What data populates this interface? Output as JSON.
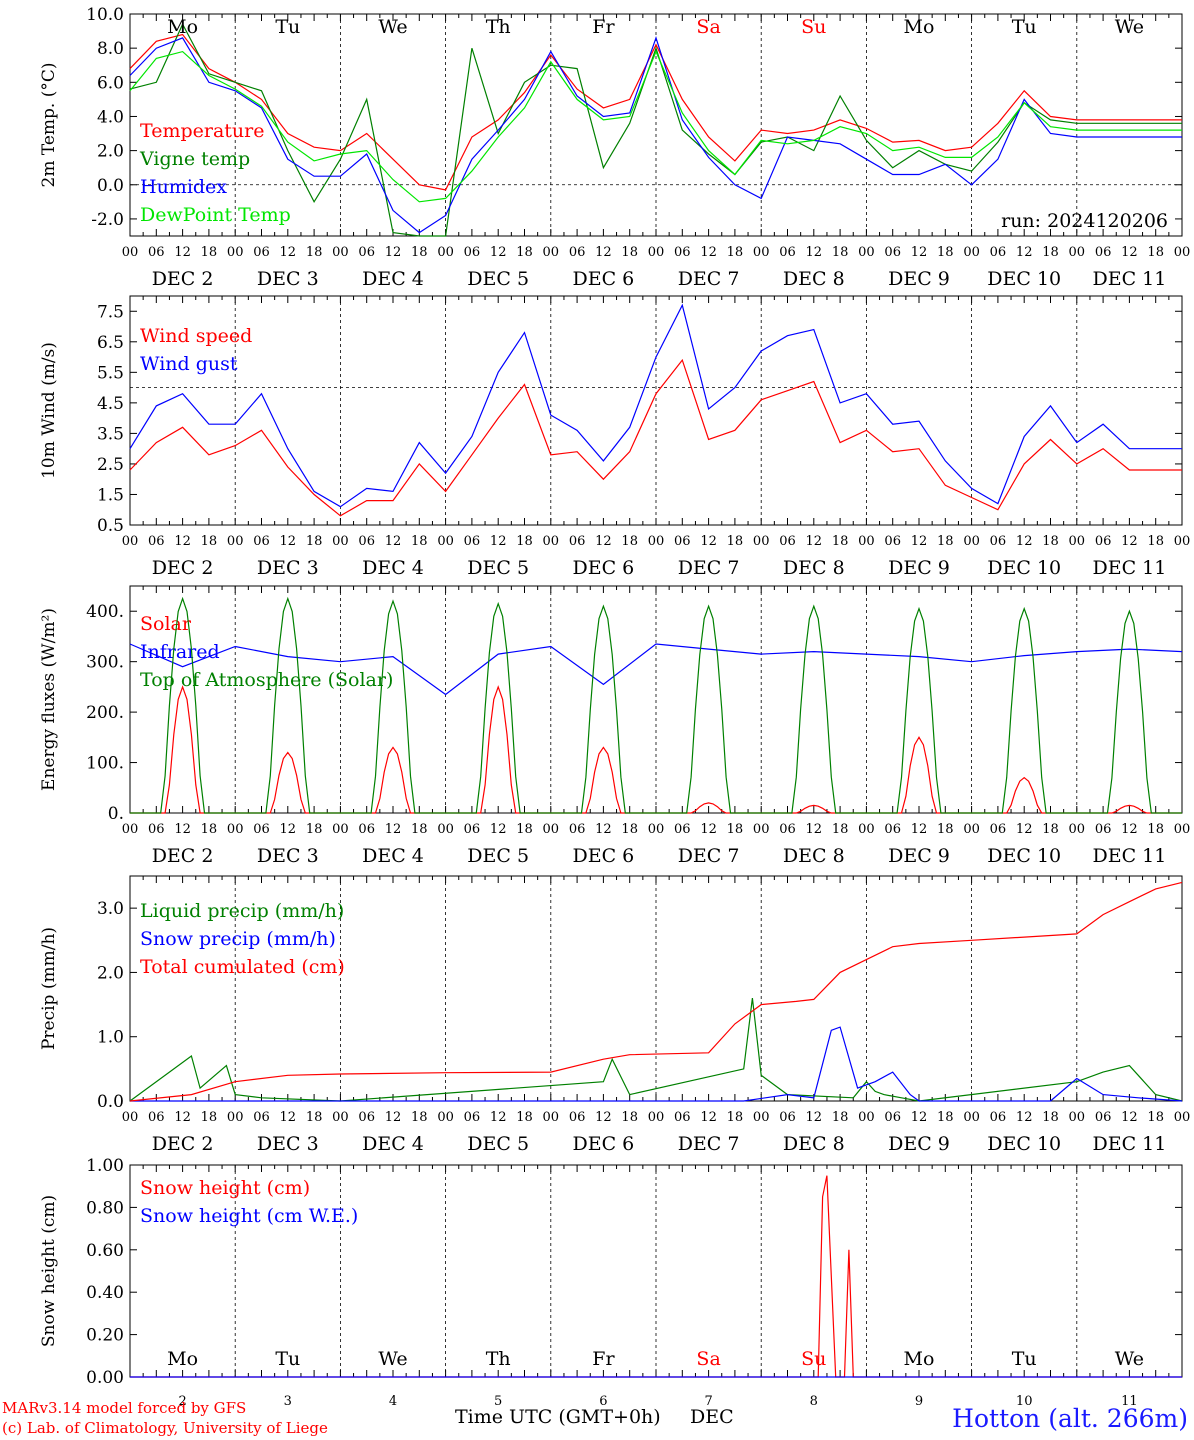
{
  "footer": {
    "model_line": "MARv3.14 model forced by GFS",
    "credit_line": "(c) Lab. of Climatology, University of Liege",
    "xaxis_title": "Time UTC (GMT+0h)",
    "month": "DEC",
    "station": "Hotton (alt. 266m)"
  },
  "hour_ticks": [
    "00",
    "06",
    "12",
    "18"
  ],
  "end_hour_tick": "00",
  "date_labels": [
    "DEC  2",
    "DEC  3",
    "DEC  4",
    "DEC  5",
    "DEC  6",
    "DEC  7",
    "DEC  8",
    "DEC  9",
    "DEC 10",
    "DEC 11"
  ],
  "day_numbers": [
    "2",
    "3",
    "4",
    "5",
    "6",
    "7",
    "8",
    "9",
    "10",
    "11"
  ],
  "weekdays": [
    "Mo",
    "Tu",
    "We",
    "Th",
    "Fr",
    "Sa",
    "Su",
    "Mo",
    "Tu",
    "We"
  ],
  "weekend_color": "#ff0000",
  "chart_data": [
    {
      "type": "line",
      "ylabel": "2m Temp. (°C)",
      "ylim": [
        -3,
        10
      ],
      "yticks": [
        "-2.0",
        "0.0",
        "2.0",
        "4.0",
        "6.0",
        "8.0",
        "10.0"
      ],
      "ref_line": 0,
      "annotation": "run: 2024120206",
      "x_unit": "hours since DEC 2 00 UTC",
      "series": [
        {
          "name": "Temperature",
          "color": "#ff0000",
          "x": [
            0,
            6,
            12,
            18,
            24,
            30,
            36,
            42,
            48,
            54,
            60,
            66,
            72,
            78,
            84,
            90,
            96,
            102,
            108,
            114,
            120,
            126,
            132,
            138,
            144,
            150,
            156,
            162,
            168,
            174,
            180,
            186,
            192,
            198,
            204,
            210,
            216,
            222,
            228,
            234,
            240
          ],
          "values": [
            6.8,
            8.4,
            8.8,
            6.8,
            6.0,
            5.0,
            3.0,
            2.2,
            2.0,
            3.0,
            1.5,
            0.0,
            -0.3,
            2.8,
            3.8,
            5.4,
            7.6,
            5.6,
            4.5,
            5.0,
            8.2,
            5.0,
            2.8,
            1.4,
            3.2,
            3.0,
            3.2,
            3.8,
            3.3,
            2.5,
            2.6,
            2.0,
            2.2,
            3.6,
            5.5,
            4.0,
            3.8,
            3.8,
            3.8,
            3.8,
            3.8
          ]
        },
        {
          "name": "Vigne temp",
          "color": "#008000",
          "x": [
            0,
            6,
            12,
            18,
            24,
            30,
            36,
            42,
            48,
            54,
            60,
            66,
            72,
            78,
            84,
            90,
            96,
            102,
            108,
            114,
            120,
            126,
            132,
            138,
            144,
            150,
            156,
            162,
            168,
            174,
            180,
            186,
            192,
            198,
            204,
            210,
            216,
            222,
            228,
            234,
            240
          ],
          "values": [
            5.6,
            6.0,
            9.4,
            6.5,
            6.0,
            5.5,
            2.0,
            -1.0,
            1.5,
            5.0,
            -2.8,
            -3.0,
            -3.0,
            8.0,
            3.0,
            6.0,
            7.0,
            6.8,
            1.0,
            3.6,
            8.0,
            3.2,
            1.8,
            0.6,
            2.5,
            2.8,
            2.0,
            5.2,
            2.6,
            1.0,
            2.0,
            1.2,
            0.8,
            2.5,
            4.8,
            3.8,
            3.6,
            3.6,
            3.6,
            3.6,
            3.6
          ]
        },
        {
          "name": "Humidex",
          "color": "#0000ff",
          "x": [
            0,
            6,
            12,
            18,
            24,
            30,
            36,
            42,
            48,
            54,
            60,
            66,
            72,
            78,
            84,
            90,
            96,
            102,
            108,
            114,
            120,
            126,
            132,
            138,
            144,
            150,
            156,
            162,
            168,
            174,
            180,
            186,
            192,
            198,
            204,
            210,
            216,
            222,
            228,
            234,
            240
          ],
          "values": [
            6.4,
            8.0,
            8.6,
            6.0,
            5.5,
            4.5,
            1.5,
            0.5,
            0.5,
            1.8,
            -1.5,
            -2.8,
            -1.8,
            1.5,
            3.2,
            5.0,
            7.8,
            5.2,
            4.0,
            4.2,
            8.6,
            3.8,
            1.6,
            0.0,
            -0.8,
            2.8,
            2.6,
            2.4,
            1.5,
            0.6,
            0.6,
            1.2,
            0.0,
            1.5,
            5.0,
            3.0,
            2.8,
            2.8,
            2.8,
            2.8,
            2.8
          ]
        },
        {
          "name": "DewPoint Temp",
          "color": "#00e600",
          "x": [
            0,
            6,
            12,
            18,
            24,
            30,
            36,
            42,
            48,
            54,
            60,
            66,
            72,
            78,
            84,
            90,
            96,
            102,
            108,
            114,
            120,
            126,
            132,
            138,
            144,
            150,
            156,
            162,
            168,
            174,
            180,
            186,
            192,
            198,
            204,
            210,
            216,
            222,
            228,
            234,
            240
          ],
          "values": [
            5.5,
            7.4,
            7.8,
            6.4,
            5.6,
            4.6,
            2.5,
            1.4,
            1.8,
            2.0,
            0.3,
            -1.0,
            -0.8,
            0.8,
            2.8,
            4.5,
            7.2,
            5.0,
            3.8,
            4.0,
            7.8,
            4.2,
            2.0,
            0.6,
            2.6,
            2.4,
            2.6,
            3.4,
            3.0,
            2.0,
            2.2,
            1.6,
            1.6,
            2.8,
            4.8,
            3.4,
            3.2,
            3.2,
            3.2,
            3.2,
            3.2
          ]
        }
      ]
    },
    {
      "type": "line",
      "ylabel": "10m Wind (m/s)",
      "ylim": [
        0.5,
        8.0
      ],
      "yticks": [
        "0.5",
        "1.5",
        "2.5",
        "3.5",
        "4.5",
        "5.5",
        "6.5",
        "7.5"
      ],
      "ref_line": 5.0,
      "x_unit": "hours since DEC 2 00 UTC",
      "series": [
        {
          "name": "Wind speed",
          "color": "#ff0000",
          "x": [
            0,
            6,
            12,
            18,
            24,
            30,
            36,
            42,
            48,
            54,
            60,
            66,
            72,
            78,
            84,
            90,
            96,
            102,
            108,
            114,
            120,
            126,
            132,
            138,
            144,
            150,
            156,
            162,
            168,
            174,
            180,
            186,
            192,
            198,
            204,
            210,
            216,
            222,
            228,
            234,
            240
          ],
          "values": [
            2.3,
            3.2,
            3.7,
            2.8,
            3.1,
            3.6,
            2.4,
            1.5,
            0.8,
            1.3,
            1.3,
            2.5,
            1.6,
            2.8,
            4.0,
            5.1,
            2.8,
            2.9,
            2.0,
            2.9,
            4.8,
            5.9,
            3.3,
            3.6,
            4.6,
            4.9,
            5.2,
            3.2,
            3.6,
            2.9,
            3.0,
            1.8,
            1.4,
            1.0,
            2.5,
            3.3,
            2.5,
            3.0,
            2.3,
            2.3,
            2.3
          ]
        },
        {
          "name": "Wind gust",
          "color": "#0000ff",
          "x": [
            0,
            6,
            12,
            18,
            24,
            30,
            36,
            42,
            48,
            54,
            60,
            66,
            72,
            78,
            84,
            90,
            96,
            102,
            108,
            114,
            120,
            126,
            132,
            138,
            144,
            150,
            156,
            162,
            168,
            174,
            180,
            186,
            192,
            198,
            204,
            210,
            216,
            222,
            228,
            234,
            240
          ],
          "values": [
            3.0,
            4.4,
            4.8,
            3.8,
            3.8,
            4.8,
            3.0,
            1.6,
            1.1,
            1.7,
            1.6,
            3.2,
            2.2,
            3.4,
            5.5,
            6.8,
            4.1,
            3.6,
            2.6,
            3.7,
            6.0,
            7.7,
            4.3,
            5.0,
            6.2,
            6.7,
            6.9,
            4.5,
            4.8,
            3.8,
            3.9,
            2.6,
            1.7,
            1.2,
            3.4,
            4.4,
            3.2,
            3.8,
            3.0,
            3.0,
            3.0
          ]
        }
      ]
    },
    {
      "type": "line",
      "ylabel": "Energy fluxes (W/m²)",
      "ylim": [
        0,
        450
      ],
      "yticks": [
        "0.",
        "100.",
        "200.",
        "300.",
        "400."
      ],
      "x_unit": "hours since DEC 2 00 UTC",
      "series": [
        {
          "name": "Solar",
          "color": "#ff0000",
          "peaks": [
            250,
            120,
            130,
            250,
            130,
            20,
            15,
            150,
            70,
            15
          ]
        },
        {
          "name": "Infrared",
          "color": "#0000ff",
          "x": [
            0,
            12,
            24,
            36,
            48,
            60,
            72,
            84,
            96,
            108,
            120,
            132,
            144,
            156,
            168,
            180,
            192,
            204,
            216,
            228,
            240
          ],
          "values": [
            335,
            290,
            330,
            310,
            300,
            310,
            235,
            315,
            330,
            255,
            335,
            325,
            315,
            320,
            315,
            310,
            300,
            312,
            320,
            325,
            320
          ]
        },
        {
          "name": "Top of Atmosphere (Solar)",
          "color": "#008000",
          "peaks": [
            425,
            425,
            420,
            415,
            410,
            410,
            410,
            405,
            405,
            400
          ]
        }
      ]
    },
    {
      "type": "line",
      "ylabel": "Precip (mm/h)",
      "ylim": [
        0,
        3.5
      ],
      "yticks": [
        "0.0",
        "1.0",
        "2.0",
        "3.0"
      ],
      "x_unit": "hours since DEC 2 00 UTC",
      "series": [
        {
          "name": "Liquid precip (mm/h)",
          "color": "#008000",
          "x": [
            0,
            14,
            16,
            22,
            24,
            30,
            48,
            108,
            110,
            114,
            140,
            142,
            144,
            150,
            165,
            168,
            170,
            172,
            176,
            180,
            216,
            222,
            228,
            234,
            240
          ],
          "values": [
            0,
            0.7,
            0.2,
            0.55,
            0.1,
            0.05,
            0.0,
            0.3,
            0.65,
            0.1,
            0.5,
            1.6,
            0.4,
            0.1,
            0.05,
            0.3,
            0.15,
            0.1,
            0.05,
            0.0,
            0.3,
            0.45,
            0.55,
            0.1,
            0.0
          ]
        },
        {
          "name": "Snow precip (mm/h)",
          "color": "#0000ff",
          "x": [
            0,
            140,
            150,
            156,
            160,
            162,
            166,
            170,
            174,
            178,
            180,
            210,
            216,
            222,
            230,
            240
          ],
          "values": [
            0,
            0,
            0.1,
            0.05,
            1.1,
            1.15,
            0.2,
            0.3,
            0.45,
            0.1,
            0.0,
            0.0,
            0.35,
            0.1,
            0.05,
            0.0
          ]
        },
        {
          "name": "Total cumulated (cm)",
          "color": "#ff0000",
          "x": [
            0,
            14,
            24,
            36,
            48,
            72,
            96,
            108,
            114,
            132,
            138,
            144,
            152,
            156,
            162,
            168,
            174,
            180,
            192,
            204,
            216,
            222,
            228,
            234,
            240
          ],
          "values": [
            0,
            0.1,
            0.3,
            0.4,
            0.42,
            0.44,
            0.45,
            0.65,
            0.72,
            0.75,
            1.2,
            1.5,
            1.55,
            1.58,
            2.0,
            2.2,
            2.4,
            2.45,
            2.5,
            2.55,
            2.6,
            2.9,
            3.1,
            3.3,
            3.4
          ]
        }
      ]
    },
    {
      "type": "line",
      "ylabel": "Snow height (cm)",
      "ylim": [
        0,
        1.0
      ],
      "yticks": [
        "0.00",
        "0.20",
        "0.40",
        "0.60",
        "0.80",
        "1.00"
      ],
      "x_unit": "hours since DEC 2 00 UTC",
      "series": [
        {
          "name": "Snow height (cm)",
          "color": "#ff0000",
          "x": [
            0,
            157,
            158,
            159,
            161,
            162,
            163,
            164,
            165,
            166,
            240
          ],
          "values": [
            0,
            0,
            0.85,
            0.95,
            0,
            0,
            0,
            0.6,
            0,
            0,
            0
          ]
        },
        {
          "name": "Snow height (cm W.E.)",
          "color": "#0000ff",
          "x": [
            0,
            240
          ],
          "values": [
            0,
            0
          ]
        }
      ]
    }
  ]
}
